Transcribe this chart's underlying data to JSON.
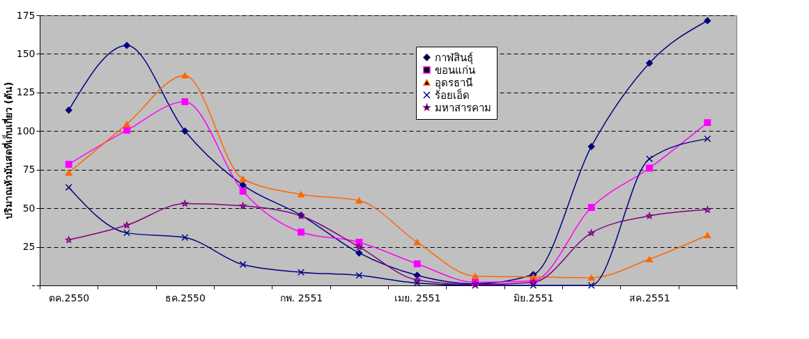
{
  "chart_data": {
    "type": "line",
    "ylabel": "ปริมาณหัวมันสดที่เก็บเกี่ยว (ตัน)",
    "categories": [
      "ตค.2550",
      null,
      "ธค.2550",
      null,
      "กพ. 2551",
      null,
      "เมย. 2551",
      null,
      "มิย.2551",
      null,
      "สค.2551",
      null
    ],
    "series": [
      {
        "name": "กาฬสินธุ์",
        "color": "#000080",
        "marker": "diamond",
        "values": [
          113.5,
          155.5,
          100,
          65,
          45.5,
          21,
          6.5,
          1,
          7,
          90,
          144,
          171.5
        ]
      },
      {
        "name": "ขอนแก่น",
        "color": "#ff00ff",
        "marker": "square",
        "values": [
          78.5,
          100.5,
          119,
          61,
          34.5,
          28,
          14,
          2,
          3,
          50.5,
          76,
          105.5
        ]
      },
      {
        "name": "อุดรธานี",
        "color": "#ff6600",
        "marker": "triangle",
        "values": [
          73,
          104.5,
          136,
          69,
          59,
          55,
          28,
          6,
          5.5,
          5,
          17,
          32.5
        ]
      },
      {
        "name": "ร้อยเอ็ด",
        "color": "#000080",
        "marker": "cross",
        "values": [
          63.5,
          34,
          31,
          13.5,
          8.5,
          6.5,
          1.5,
          0,
          0,
          0,
          82,
          95
        ]
      },
      {
        "name": "มหาสารคาม",
        "color": "#800080",
        "marker": "star",
        "values": [
          29.5,
          39,
          53,
          51.5,
          45,
          25,
          3.5,
          0.5,
          2,
          34,
          45,
          49
        ]
      }
    ],
    "ylim": [
      0,
      175
    ],
    "yticks": [
      {
        "value": 0,
        "label": "-"
      },
      25,
      50,
      75,
      100,
      125,
      150,
      175
    ],
    "grid": "y",
    "legend": "top",
    "line_style": "solid"
  }
}
